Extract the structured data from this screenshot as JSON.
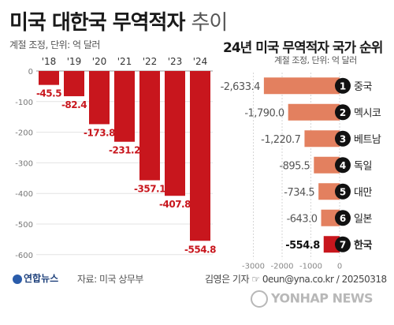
{
  "title_main": "미국 대한국 무역적자",
  "title_suffix": "추이",
  "left_note": "계절 조정, 단위: 억 달러",
  "right_title": "24년 미국 무역적자 국가 순위",
  "right_note": "계절 조정, 단위: 억 달러",
  "logo_text": "연합뉴스",
  "source": "자료: 미국 상무부",
  "credit": "김영은 기자 ☞ 0eun@yna.co.kr / 20250318",
  "watermark": "YONHAP NEWS",
  "colors": {
    "bar_dark": "#c8161d",
    "bar_light": "#e3805f",
    "bar_highlight": "#c8161d",
    "badge": "#111111",
    "label_red": "#c8161d"
  },
  "chart_data": [
    {
      "type": "bar",
      "orientation": "vertical",
      "categories": [
        "'18",
        "'19",
        "'20",
        "'21",
        "'22",
        "'23",
        "'24"
      ],
      "values": [
        -45.5,
        -82.4,
        -173.8,
        -231.2,
        -357.1,
        -407.8,
        -554.8
      ],
      "ylim": [
        -600,
        0
      ],
      "yticks": [
        0,
        -100,
        -200,
        -300,
        -400,
        -500,
        -600
      ],
      "grid": true
    },
    {
      "type": "bar",
      "orientation": "horizontal",
      "categories": [
        "중국",
        "멕시코",
        "베트남",
        "독일",
        "대만",
        "일본",
        "한국"
      ],
      "ranks": [
        "1",
        "2",
        "3",
        "4",
        "5",
        "6",
        "7"
      ],
      "values": [
        -2633.4,
        -1790.0,
        -1220.7,
        -895.5,
        -734.5,
        -643.0,
        -554.8
      ],
      "value_labels": [
        "-2,633.4",
        "-1,790.0",
        "-1,220.7",
        "-895.5",
        "-734.5",
        "-643.0",
        "-554.8"
      ],
      "highlight": "한국",
      "xlim": [
        -3000,
        0
      ],
      "xticks": [
        -3000,
        -2000,
        -1000,
        0
      ],
      "xtick_labels": [
        "-3000",
        "-2000",
        "-1000",
        "0"
      ]
    }
  ]
}
